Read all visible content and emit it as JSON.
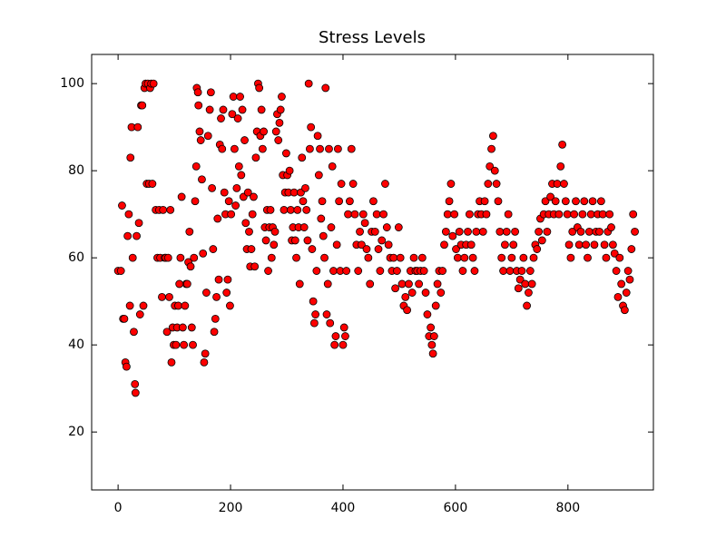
{
  "chart_data": {
    "type": "scatter",
    "title": "Stress Levels",
    "x": [
      0,
      5,
      7,
      9,
      11,
      13,
      15,
      17,
      19,
      21,
      22,
      24,
      26,
      28,
      30,
      31,
      33,
      35,
      37,
      39,
      41,
      43,
      45,
      47,
      49,
      51,
      53,
      55,
      57,
      59,
      61,
      63,
      67,
      70,
      73,
      75,
      78,
      80,
      83,
      85,
      87,
      89,
      91,
      93,
      95,
      97,
      99,
      101,
      103,
      105,
      107,
      109,
      111,
      113,
      115,
      117,
      119,
      121,
      123,
      125,
      127,
      129,
      131,
      133,
      135,
      137,
      139,
      140,
      142,
      143,
      145,
      147,
      149,
      151,
      153,
      155,
      157,
      160,
      163,
      165,
      167,
      169,
      171,
      173,
      175,
      177,
      179,
      181,
      183,
      185,
      187,
      189,
      191,
      193,
      195,
      197,
      199,
      201,
      203,
      205,
      207,
      209,
      211,
      213,
      215,
      217,
      219,
      221,
      223,
      225,
      227,
      229,
      231,
      233,
      235,
      237,
      239,
      241,
      243,
      245,
      247,
      249,
      251,
      253,
      255,
      257,
      259,
      261,
      263,
      265,
      267,
      269,
      271,
      273,
      275,
      277,
      279,
      281,
      283,
      285,
      287,
      289,
      291,
      293,
      295,
      297,
      299,
      301,
      303,
      305,
      307,
      309,
      311,
      313,
      315,
      317,
      319,
      321,
      323,
      325,
      327,
      329,
      331,
      333,
      335,
      337,
      339,
      341,
      343,
      345,
      347,
      349,
      351,
      353,
      355,
      357,
      359,
      361,
      363,
      365,
      367,
      369,
      371,
      373,
      375,
      377,
      379,
      381,
      383,
      385,
      387,
      389,
      391,
      393,
      395,
      397,
      400,
      402,
      404,
      406,
      409,
      412,
      415,
      418,
      421,
      424,
      427,
      430,
      433,
      436,
      439,
      442,
      445,
      448,
      451,
      454,
      457,
      460,
      463,
      466,
      469,
      472,
      475,
      478,
      481,
      484,
      487,
      490,
      493,
      496,
      499,
      502,
      505,
      508,
      511,
      514,
      517,
      520,
      523,
      526,
      529,
      532,
      535,
      538,
      541,
      544,
      547,
      550,
      553,
      556,
      558,
      560,
      562,
      565,
      568,
      571,
      574,
      577,
      580,
      583,
      586,
      589,
      592,
      595,
      598,
      601,
      604,
      607,
      610,
      613,
      616,
      619,
      622,
      625,
      628,
      631,
      634,
      637,
      640,
      643,
      646,
      649,
      652,
      655,
      658,
      661,
      664,
      667,
      670,
      673,
      676,
      679,
      682,
      685,
      688,
      691,
      694,
      697,
      700,
      703,
      706,
      709,
      712,
      715,
      718,
      721,
      724,
      727,
      730,
      733,
      736,
      739,
      742,
      745,
      748,
      751,
      754,
      757,
      760,
      763,
      766,
      769,
      772,
      775,
      778,
      781,
      784,
      787,
      790,
      793,
      796,
      799,
      802,
      805,
      808,
      811,
      814,
      817,
      820,
      823,
      826,
      829,
      832,
      835,
      838,
      841,
      844,
      847,
      850,
      853,
      856,
      859,
      862,
      865,
      868,
      871,
      874,
      877,
      880,
      883,
      886,
      889,
      892,
      895,
      898,
      901,
      904,
      907,
      910,
      913,
      916,
      919
    ],
    "values": [
      57,
      57,
      72,
      46,
      46,
      36,
      35,
      65,
      70,
      49,
      83,
      90,
      60,
      43,
      31,
      29,
      65,
      90,
      68,
      47,
      95,
      95,
      49,
      99,
      100,
      77,
      100,
      77,
      99,
      100,
      77,
      100,
      71,
      60,
      71,
      60,
      51,
      71,
      60,
      60,
      43,
      60,
      51,
      71,
      36,
      44,
      40,
      49,
      40,
      44,
      49,
      54,
      60,
      74,
      44,
      40,
      49,
      54,
      54,
      59,
      66,
      58,
      44,
      40,
      60,
      73,
      81,
      99,
      98,
      95,
      89,
      87,
      78,
      61,
      36,
      38,
      52,
      88,
      94,
      98,
      76,
      62,
      43,
      46,
      51,
      69,
      55,
      86,
      92,
      85,
      94,
      75,
      70,
      52,
      55,
      73,
      49,
      70,
      93,
      97,
      85,
      72,
      76,
      92,
      81,
      97,
      79,
      94,
      74,
      87,
      68,
      62,
      75,
      66,
      58,
      62,
      70,
      74,
      58,
      83,
      89,
      100,
      99,
      88,
      94,
      85,
      89,
      67,
      64,
      71,
      57,
      67,
      71,
      60,
      67,
      63,
      66,
      89,
      93,
      87,
      91,
      94,
      97,
      79,
      71,
      75,
      84,
      79,
      75,
      80,
      71,
      64,
      67,
      75,
      64,
      60,
      71,
      67,
      54,
      75,
      83,
      73,
      67,
      76,
      71,
      64,
      100,
      85,
      90,
      62,
      50,
      45,
      47,
      57,
      88,
      79,
      85,
      69,
      73,
      65,
      60,
      99,
      47,
      54,
      85,
      45,
      67,
      81,
      57,
      40,
      42,
      63,
      85,
      73,
      57,
      77,
      40,
      44,
      42,
      57,
      70,
      73,
      85,
      77,
      70,
      63,
      57,
      66,
      63,
      70,
      68,
      62,
      60,
      54,
      66,
      73,
      66,
      70,
      62,
      57,
      64,
      70,
      77,
      67,
      63,
      60,
      57,
      60,
      53,
      57,
      67,
      60,
      54,
      49,
      51,
      48,
      54,
      57,
      52,
      60,
      57,
      57,
      54,
      57,
      60,
      57,
      52,
      47,
      42,
      44,
      40,
      38,
      42,
      49,
      54,
      57,
      52,
      57,
      63,
      66,
      70,
      73,
      77,
      65,
      70,
      62,
      60,
      66,
      63,
      57,
      60,
      63,
      66,
      70,
      63,
      60,
      57,
      66,
      70,
      73,
      70,
      66,
      73,
      70,
      77,
      81,
      85,
      88,
      80,
      77,
      73,
      66,
      60,
      57,
      63,
      66,
      70,
      57,
      60,
      63,
      66,
      57,
      53,
      55,
      57,
      60,
      54,
      49,
      52,
      57,
      54,
      60,
      63,
      62,
      66,
      69,
      64,
      70,
      73,
      66,
      70,
      74,
      77,
      70,
      73,
      77,
      70,
      81,
      86,
      77,
      73,
      70,
      63,
      60,
      66,
      70,
      73,
      67,
      63,
      66,
      70,
      73,
      63,
      60,
      66,
      70,
      73,
      63,
      66,
      70,
      66,
      73,
      70,
      63,
      60,
      66,
      70,
      67,
      63,
      61,
      57,
      51,
      60,
      54,
      49,
      48,
      52,
      57,
      55,
      62,
      70,
      66
    ],
    "color": "#ff0000",
    "edgecolor": "#000000",
    "xlim": [
      -47,
      952
    ],
    "xticks": [
      0,
      200,
      400,
      600,
      800
    ],
    "ylim": [
      6.7,
      106.7
    ],
    "yticks": [
      20,
      40,
      60,
      80,
      100
    ]
  }
}
